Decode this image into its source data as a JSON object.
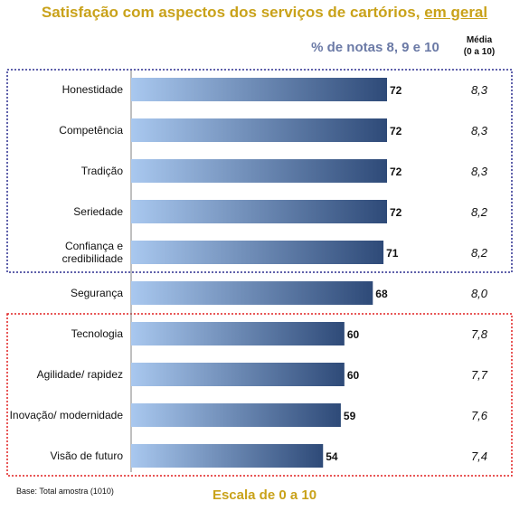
{
  "title": {
    "main": "Satisfação com aspectos dos serviços de cartórios,",
    "emphasis": "em geral"
  },
  "headers": {
    "pct": "% de notas 8, 9 e 10",
    "media_line1": "Média",
    "media_line2": "(0 a 10)"
  },
  "footer": {
    "base": "Base: Total amostra (1010)",
    "scale": "Escala de 0 a 10"
  },
  "colors": {
    "title": "#c9a21a",
    "pct_header": "#6b7aa6",
    "bar_light": "#a9c8ef",
    "bar_dark": "#2e4a78",
    "box_top": "#2b2f8f",
    "box_bottom": "#e02020"
  },
  "chart_data": {
    "type": "bar",
    "orientation": "horizontal",
    "categories": [
      [
        "Honestidade"
      ],
      [
        "Competência"
      ],
      [
        "Tradição"
      ],
      [
        "Seriedade"
      ],
      [
        "Confiança e",
        "credibilidade"
      ],
      [
        "Segurança"
      ],
      [
        "Tecnologia"
      ],
      [
        "Agilidade/ rapidez"
      ],
      [
        "Inovação/ modernidade"
      ],
      [
        "Visão de futuro"
      ]
    ],
    "values": [
      72,
      72,
      72,
      72,
      71,
      68,
      60,
      60,
      59,
      54
    ],
    "means": [
      "8,3",
      "8,3",
      "8,3",
      "8,2",
      "8,2",
      "8,0",
      "7,8",
      "7,7",
      "7,6",
      "7,4"
    ],
    "xlim": [
      0,
      100
    ],
    "groups": {
      "top_box_categories": [
        0,
        4
      ],
      "bottom_box_categories": [
        6,
        9
      ]
    }
  }
}
